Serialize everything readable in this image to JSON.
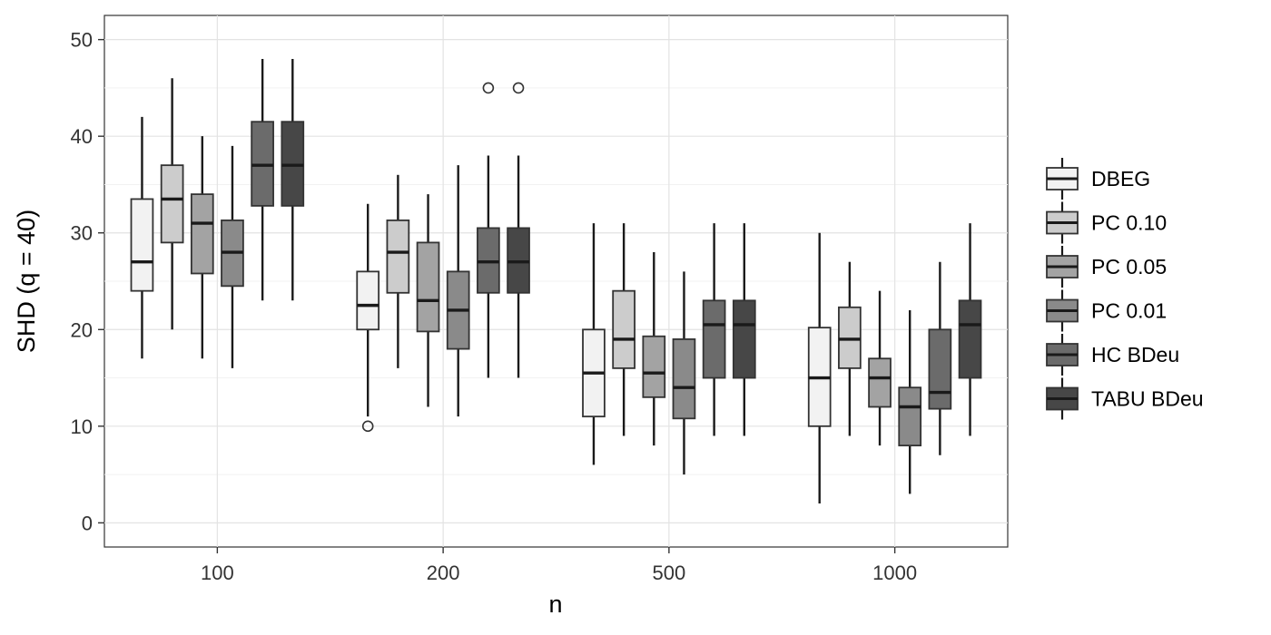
{
  "chart_data": {
    "type": "boxplot",
    "xlabel": "n",
    "ylabel": "SHD   (q = 40)",
    "ylim": [
      -2.5,
      52.5
    ],
    "yticks": [
      0,
      10,
      20,
      30,
      40,
      50
    ],
    "grid": true,
    "legend_position": "right",
    "categories": [
      "100",
      "200",
      "500",
      "1000"
    ],
    "series": [
      {
        "name": "DBEG",
        "color": "#f2f2f2",
        "boxes": [
          {
            "min": 17,
            "q1": 24,
            "median": 27,
            "q3": 33.5,
            "max": 42,
            "outliers": []
          },
          {
            "min": 11,
            "q1": 20,
            "median": 22.5,
            "q3": 26,
            "max": 33,
            "outliers": [
              10
            ]
          },
          {
            "min": 6,
            "q1": 11,
            "median": 15.5,
            "q3": 20,
            "max": 31,
            "outliers": []
          },
          {
            "min": 2,
            "q1": 10,
            "median": 15,
            "q3": 20.2,
            "max": 30,
            "outliers": []
          }
        ]
      },
      {
        "name": "PC 0.10",
        "color": "#cccccc",
        "boxes": [
          {
            "min": 20,
            "q1": 29,
            "median": 33.5,
            "q3": 37,
            "max": 46,
            "outliers": []
          },
          {
            "min": 16,
            "q1": 23.8,
            "median": 28,
            "q3": 31.3,
            "max": 36,
            "outliers": []
          },
          {
            "min": 9,
            "q1": 16,
            "median": 19,
            "q3": 24,
            "max": 31,
            "outliers": []
          },
          {
            "min": 9,
            "q1": 16,
            "median": 19,
            "q3": 22.3,
            "max": 27,
            "outliers": []
          }
        ]
      },
      {
        "name": "PC 0.05",
        "color": "#a3a3a3",
        "boxes": [
          {
            "min": 17,
            "q1": 25.8,
            "median": 31,
            "q3": 34,
            "max": 40,
            "outliers": []
          },
          {
            "min": 12,
            "q1": 19.8,
            "median": 23,
            "q3": 29,
            "max": 34,
            "outliers": []
          },
          {
            "min": 8,
            "q1": 13,
            "median": 15.5,
            "q3": 19.3,
            "max": 28,
            "outliers": []
          },
          {
            "min": 8,
            "q1": 12,
            "median": 15,
            "q3": 17,
            "max": 24,
            "outliers": []
          }
        ]
      },
      {
        "name": "PC 0.01",
        "color": "#8a8a8a",
        "boxes": [
          {
            "min": 16,
            "q1": 24.5,
            "median": 28,
            "q3": 31.3,
            "max": 39,
            "outliers": []
          },
          {
            "min": 11,
            "q1": 18,
            "median": 22,
            "q3": 26,
            "max": 37,
            "outliers": []
          },
          {
            "min": 5,
            "q1": 10.8,
            "median": 14,
            "q3": 19,
            "max": 26,
            "outliers": []
          },
          {
            "min": 3,
            "q1": 8,
            "median": 12,
            "q3": 14,
            "max": 22,
            "outliers": []
          }
        ]
      },
      {
        "name": "HC BDeu",
        "color": "#6b6b6b",
        "boxes": [
          {
            "min": 23,
            "q1": 32.8,
            "median": 37,
            "q3": 41.5,
            "max": 48,
            "outliers": []
          },
          {
            "min": 15,
            "q1": 23.8,
            "median": 27,
            "q3": 30.5,
            "max": 38,
            "outliers": [
              45
            ]
          },
          {
            "min": 9,
            "q1": 15,
            "median": 20.5,
            "q3": 23,
            "max": 31,
            "outliers": []
          },
          {
            "min": 7,
            "q1": 11.8,
            "median": 13.5,
            "q3": 20,
            "max": 27,
            "outliers": []
          }
        ]
      },
      {
        "name": "TABU BDeu",
        "color": "#474747",
        "boxes": [
          {
            "min": 23,
            "q1": 32.8,
            "median": 37,
            "q3": 41.5,
            "max": 48,
            "outliers": []
          },
          {
            "min": 15,
            "q1": 23.8,
            "median": 27,
            "q3": 30.5,
            "max": 38,
            "outliers": [
              45
            ]
          },
          {
            "min": 9,
            "q1": 15,
            "median": 20.5,
            "q3": 23,
            "max": 31,
            "outliers": []
          },
          {
            "min": 9,
            "q1": 15,
            "median": 20.5,
            "q3": 23,
            "max": 31,
            "outliers": []
          }
        ]
      }
    ]
  }
}
